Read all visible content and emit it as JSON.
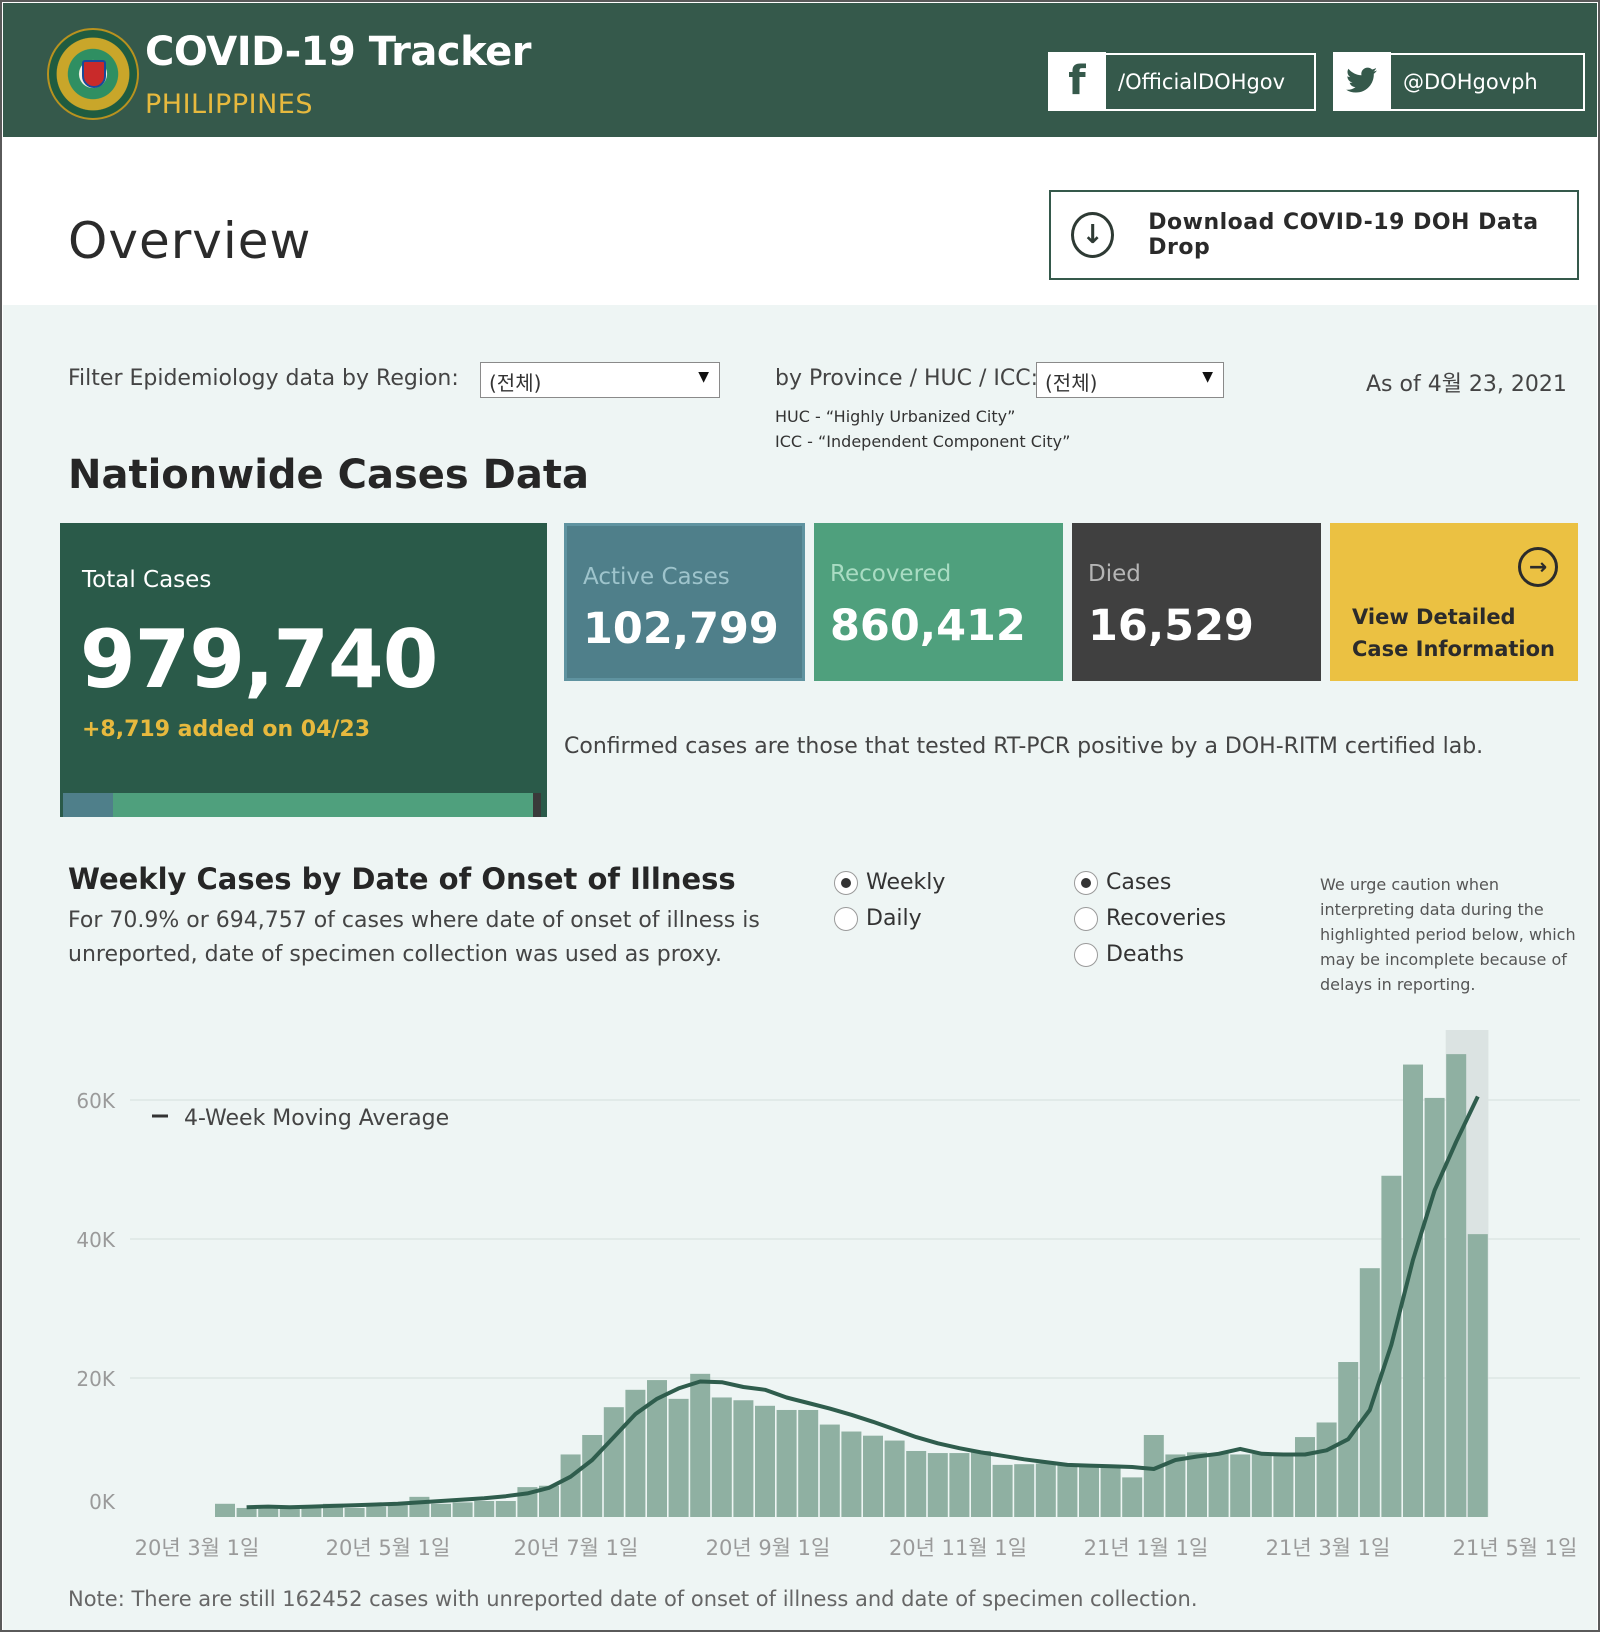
{
  "header": {
    "title": "COVID-19 Tracker",
    "subtitle": "PHILIPPINES",
    "facebook": "/OfficialDOHgov",
    "twitter": "@DOHgovph"
  },
  "overview": {
    "title": "Overview",
    "download_label": "Download COVID-19 DOH Data Drop"
  },
  "filters": {
    "region_label": "Filter Epidemiology data by Region:",
    "region_value": "(전체)",
    "province_label": "by Province / HUC / ICC:",
    "province_value": "(전체)",
    "huc_note": "HUC - “Highly Urbanized City”",
    "icc_note": "ICC - “Independent Component City”",
    "as_of": "As of 4월 23, 2021"
  },
  "nationwide": {
    "heading": "Nationwide Cases Data",
    "total_label": "Total Cases",
    "total_value": "979,740",
    "added_note": "+8,719 added on 04/23",
    "active_label": "Active Cases",
    "active_value": "102,799",
    "recovered_label": "Recovered",
    "recovered_value": "860,412",
    "died_label": "Died",
    "died_value": "16,529",
    "view_line1": "View Detailed",
    "view_line2": "Case Information",
    "confirm_note": "Confirmed cases are those that tested RT-PCR positive by a DOH-RITM certified lab.",
    "share_active": 0.105,
    "share_recovered": 0.878,
    "share_died": 0.017
  },
  "weekly": {
    "heading": "Weekly Cases by Date of Onset of Illness",
    "sub_note": "For 70.9% or 694,757 of cases where date of onset of illness is unreported, date of specimen collection was used as proxy.",
    "radio_weekly": "Weekly",
    "radio_daily": "Daily",
    "radio_cases": "Cases",
    "radio_recoveries": "Recoveries",
    "radio_deaths": "Deaths",
    "caution": "We urge caution when interpreting data during the highlighted period below, which may be incomplete because of delays in reporting.",
    "bottom_note": "Note: There are still 162452 cases with unreported date of onset of illness and date of specimen collection."
  },
  "colors": {
    "header_bg": "#35594b",
    "accent_gold": "#e7b93e",
    "active": "#4f7f8a",
    "recovered": "#4fa07d",
    "died": "#404040",
    "view": "#ebc142",
    "bar": "#8fb0a2",
    "line": "#2f5d4d"
  },
  "icons": {
    "facebook": "facebook-icon",
    "twitter": "twitter-icon",
    "download": "download-icon",
    "arrow_right": "arrow-right-circle-icon",
    "logo": "doh-seal-logo"
  },
  "chart_data": {
    "type": "bar",
    "title": "",
    "legend": "4-Week Moving Average",
    "ylim": [
      0,
      65000
    ],
    "y_ticks": [
      0,
      20000,
      40000,
      60000
    ],
    "y_tick_labels": [
      "0K",
      "20K",
      "40K",
      "60K"
    ],
    "x_tick_labels": [
      "20년 3월 1일",
      "20년 5월 1일",
      "20년 7월 1일",
      "20년 9월 1일",
      "20년 11월 1일",
      "21년 1월 1일",
      "21년 3월 1일",
      "21년 5월 1일"
    ],
    "highlighted_period": "last 2 weeks",
    "series": [
      {
        "kind": "bar",
        "values": [
          1900,
          1300,
          1200,
          1200,
          1500,
          1900,
          1300,
          1500,
          1700,
          2900,
          1900,
          2100,
          2300,
          2300,
          4300,
          4500,
          9000,
          11800,
          15800,
          18300,
          19700,
          17000,
          20600,
          17200,
          16800,
          16000,
          15400,
          15400,
          13300,
          12300,
          11700,
          11000,
          9500,
          9200,
          9200,
          9500,
          7500,
          7600,
          7700,
          7500,
          7500,
          7200,
          5700,
          11800,
          9000,
          9300,
          9200,
          9000,
          9100,
          8900,
          11500,
          13600,
          22300,
          35800,
          49100,
          65100,
          60300,
          66600,
          40700
        ]
      },
      {
        "kind": "line",
        "name": "4-Week Moving Average",
        "values": [
          1400,
          1500,
          1400,
          1500,
          1600,
          1700,
          1800,
          1900,
          2100,
          2300,
          2500,
          2700,
          3000,
          3400,
          4200,
          5800,
          8200,
          11500,
          14800,
          17000,
          18500,
          19500,
          19400,
          18700,
          18300,
          17200,
          16400,
          15600,
          14700,
          13700,
          12600,
          11500,
          10600,
          9900,
          9300,
          8800,
          8300,
          7900,
          7500,
          7400,
          7300,
          7200,
          6900,
          8200,
          8700,
          9100,
          9800,
          9100,
          9000,
          9000,
          9600,
          11200,
          15400,
          24800,
          37000,
          47000,
          54000,
          60500
        ]
      }
    ]
  }
}
